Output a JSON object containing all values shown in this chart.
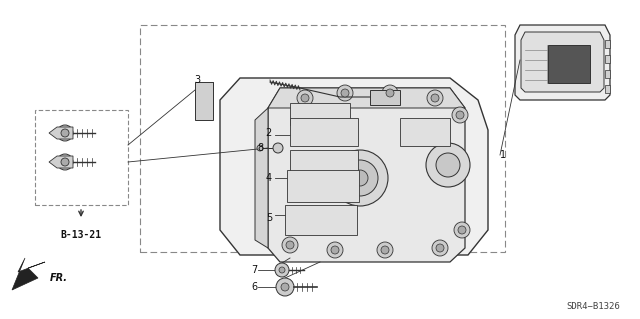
{
  "bg_color": "#ffffff",
  "line_color": "#333333",
  "text_color": "#111111",
  "fig_width": 6.4,
  "fig_height": 3.19,
  "dpi": 100,
  "diagram_code": "SDR4−B1326"
}
